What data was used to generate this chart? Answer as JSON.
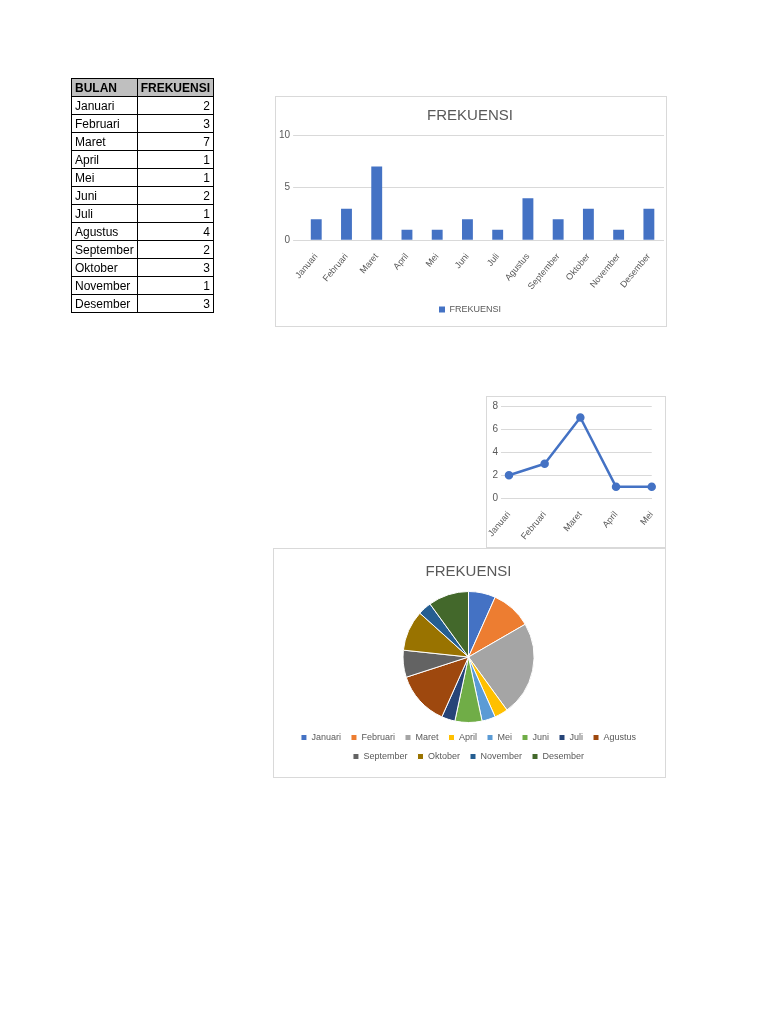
{
  "chart_data": [
    {
      "type": "other",
      "annotations": [
        "BULAN",
        "FREKUENSI"
      ],
      "categories": [
        "Januari",
        "Februari",
        "Maret",
        "April",
        "Mei",
        "Juni",
        "Juli",
        "Agustus",
        "September",
        "Oktober",
        "November",
        "Desember"
      ],
      "values": [
        2,
        3,
        7,
        1,
        1,
        2,
        1,
        4,
        2,
        3,
        1,
        3
      ],
      "data_labels": true
    },
    {
      "type": "bar",
      "title": "FREKUENSI",
      "categories": [
        "Januari",
        "Februari",
        "Maret",
        "April",
        "Mei",
        "Juni",
        "Juli",
        "Agustus",
        "September",
        "Oktober",
        "November",
        "Desember"
      ],
      "series": [
        {
          "name": "FREKUENSI",
          "color": "#4472c4",
          "values": [
            2,
            3,
            7,
            1,
            1,
            2,
            1,
            4,
            2,
            3,
            1,
            3
          ]
        }
      ],
      "ylim": [
        0,
        10
      ],
      "yticks": [
        0,
        5,
        10
      ],
      "grid": "y",
      "legend": "bottom"
    },
    {
      "type": "line",
      "categories": [
        "Januari",
        "Februari",
        "Maret",
        "April",
        "Mei"
      ],
      "series": [
        {
          "color": "#4472c4",
          "values": [
            2,
            3,
            7,
            1,
            1
          ]
        }
      ],
      "ylim": [
        0,
        8
      ],
      "yticks": [
        0,
        2,
        4,
        6,
        8
      ],
      "grid": "y",
      "marker": "circle"
    },
    {
      "type": "pie",
      "title": "FREKUENSI",
      "categories": [
        "Januari",
        "Februari",
        "Maret",
        "April",
        "Mei",
        "Juni",
        "Juli",
        "Agustus",
        "September",
        "Oktober",
        "November",
        "Desember"
      ],
      "values": [
        6.67,
        10,
        23.34,
        3.33,
        3.33,
        6.67,
        3.33,
        13.33,
        6.67,
        10,
        3.33,
        10
      ],
      "colors": [
        "#4472c4",
        "#ed7d31",
        "#a5a5a5",
        "#ffc000",
        "#5b9bd5",
        "#70ad47",
        "#264478",
        "#9e480e",
        "#636363",
        "#997300",
        "#255e91",
        "#43682b"
      ],
      "legend": "bottom"
    }
  ]
}
